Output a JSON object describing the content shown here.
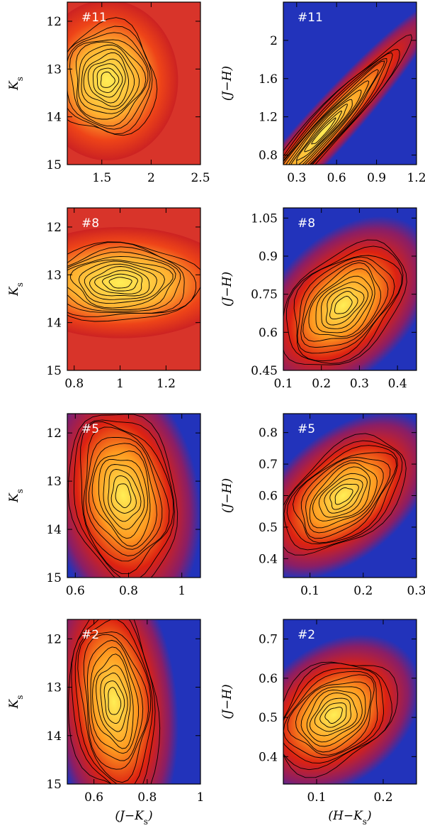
{
  "chart_data": [
    {
      "type": "heatmap",
      "panel_label": "#11",
      "xlabel": "",
      "ylabel": "K_s",
      "xlim": [
        1.15,
        2.5
      ],
      "ylim": [
        15,
        11.6
      ],
      "xticks": [
        "1.5",
        "2",
        "2.5"
      ],
      "xtick_values": [
        1.5,
        2.0,
        2.5
      ],
      "yticks": [
        "12",
        "13",
        "14",
        "15"
      ],
      "ytick_values": [
        12,
        13,
        14,
        15
      ],
      "density_peak": [
        1.45,
        13.4
      ],
      "background": "red",
      "colors": {
        "low": "#2233bb",
        "mid": "#dd2211",
        "high": "#ffee55"
      }
    },
    {
      "type": "heatmap",
      "panel_label": "#11",
      "xlabel": "",
      "ylabel": "(J−H)",
      "xlim": [
        0.2,
        1.2
      ],
      "ylim": [
        0.7,
        2.4
      ],
      "xticks": [
        "0.3",
        "0.6",
        "0.9",
        "1.2"
      ],
      "xtick_values": [
        0.3,
        0.6,
        0.9,
        1.2
      ],
      "yticks": [
        "0.8",
        "1.2",
        "1.6",
        "2"
      ],
      "ytick_values": [
        0.8,
        1.2,
        1.6,
        2.0
      ],
      "density_peak": [
        0.45,
        1.08
      ],
      "background": "blue",
      "colors": {
        "low": "#2233bb",
        "mid": "#dd2211",
        "high": "#ffee55"
      }
    },
    {
      "type": "heatmap",
      "panel_label": "#8",
      "xlabel": "",
      "ylabel": "K_s",
      "xlim": [
        0.77,
        1.35
      ],
      "ylim": [
        15,
        11.6
      ],
      "xticks": [
        "0.8",
        "1",
        "1.2"
      ],
      "xtick_values": [
        0.8,
        1.0,
        1.2
      ],
      "yticks": [
        "12",
        "13",
        "14",
        "15"
      ],
      "ytick_values": [
        12,
        13,
        14,
        15
      ],
      "density_peak": [
        0.97,
        13.1
      ],
      "background": "red",
      "colors": {
        "low": "#2233bb",
        "mid": "#dd2211",
        "high": "#ffee55"
      }
    },
    {
      "type": "heatmap",
      "panel_label": "#8",
      "xlabel": "",
      "ylabel": "(J−H)",
      "xlim": [
        0.1,
        0.45
      ],
      "ylim": [
        0.45,
        1.09
      ],
      "xticks": [
        "0.1",
        "0.2",
        "0.3",
        "0.4"
      ],
      "xtick_values": [
        0.1,
        0.2,
        0.3,
        0.4
      ],
      "yticks": [
        "0.45",
        "0.6",
        "0.75",
        "0.9",
        "1.05"
      ],
      "ytick_values": [
        0.45,
        0.6,
        0.75,
        0.9,
        1.05
      ],
      "density_peak": [
        0.22,
        0.68
      ],
      "background": "blue",
      "colors": {
        "low": "#2233bb",
        "mid": "#dd2211",
        "high": "#ffee55"
      }
    },
    {
      "type": "heatmap",
      "panel_label": "#5",
      "xlabel": "",
      "ylabel": "K_s",
      "xlim": [
        0.57,
        1.07
      ],
      "ylim": [
        15,
        11.6
      ],
      "xticks": [
        "0.6",
        "0.8",
        "1"
      ],
      "xtick_values": [
        0.6,
        0.8,
        1.0
      ],
      "yticks": [
        "12",
        "13",
        "14",
        "15"
      ],
      "ytick_values": [
        12,
        13,
        14,
        15
      ],
      "density_peak": [
        0.76,
        13.3
      ],
      "background": "blue",
      "colors": {
        "low": "#2233bb",
        "mid": "#dd2211",
        "high": "#ffee55"
      }
    },
    {
      "type": "heatmap",
      "panel_label": "#5",
      "xlabel": "",
      "ylabel": "(J−H)",
      "xlim": [
        0.05,
        0.3
      ],
      "ylim": [
        0.34,
        0.86
      ],
      "xticks": [
        "0.1",
        "0.2",
        "0.3"
      ],
      "xtick_values": [
        0.1,
        0.2,
        0.3
      ],
      "yticks": [
        "0.4",
        "0.5",
        "0.6",
        "0.7",
        "0.8"
      ],
      "ytick_values": [
        0.4,
        0.5,
        0.6,
        0.7,
        0.8
      ],
      "density_peak": [
        0.16,
        0.57
      ],
      "background": "blue",
      "colors": {
        "low": "#2233bb",
        "mid": "#dd2211",
        "high": "#ffee55"
      }
    },
    {
      "type": "heatmap",
      "panel_label": "#2",
      "xlabel": "(J−K_s)",
      "ylabel": "K_s",
      "xlim": [
        0.5,
        1.0
      ],
      "ylim": [
        15,
        11.6
      ],
      "xticks": [
        "0.6",
        "0.8",
        "1"
      ],
      "xtick_values": [
        0.6,
        0.8,
        1.0
      ],
      "yticks": [
        "12",
        "13",
        "14",
        "15"
      ],
      "ytick_values": [
        12,
        13,
        14,
        15
      ],
      "density_peak": [
        0.67,
        13.6
      ],
      "background": "blue",
      "colors": {
        "low": "#2233bb",
        "mid": "#dd2211",
        "high": "#ffee55"
      }
    },
    {
      "type": "heatmap",
      "panel_label": "#2",
      "xlabel": "(H−K_s)",
      "ylabel": "(J−H)",
      "xlim": [
        0.05,
        0.25
      ],
      "ylim": [
        0.33,
        0.75
      ],
      "xticks": [
        "0.1",
        "0.2"
      ],
      "xtick_values": [
        0.1,
        0.2
      ],
      "yticks": [
        "0.4",
        "0.5",
        "0.6",
        "0.7"
      ],
      "ytick_values": [
        0.4,
        0.5,
        0.6,
        0.7
      ],
      "density_peak": [
        0.12,
        0.53
      ],
      "background": "blue",
      "colors": {
        "low": "#2233bb",
        "mid": "#dd2211",
        "high": "#ffee55"
      }
    }
  ]
}
